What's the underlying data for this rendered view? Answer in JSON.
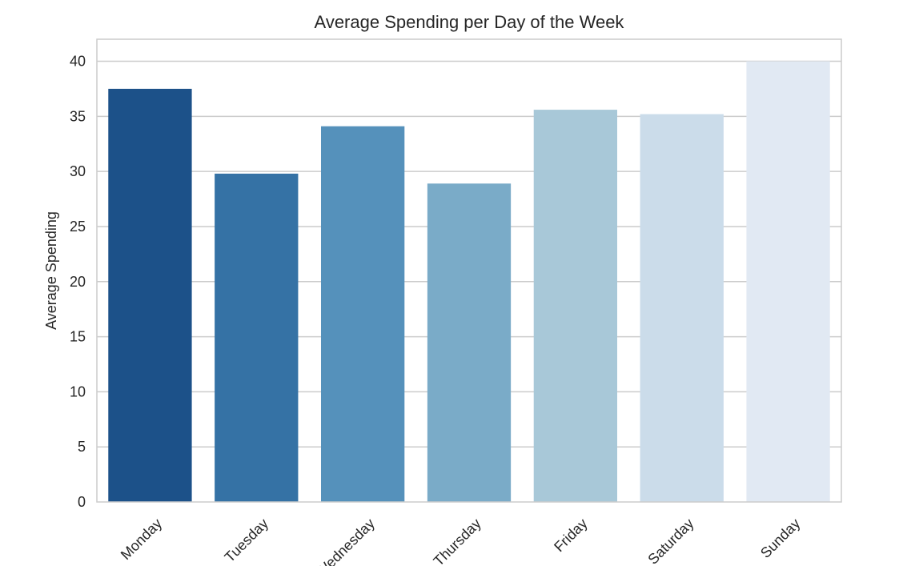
{
  "chart_data": {
    "type": "bar",
    "title": "Average Spending per Day of the Week",
    "xlabel": "",
    "ylabel": "Average Spending",
    "categories": [
      "Monday",
      "Tuesday",
      "Wednesday",
      "Thursday",
      "Friday",
      "Saturday",
      "Sunday"
    ],
    "values": [
      37.5,
      29.8,
      34.1,
      28.9,
      35.6,
      35.2,
      40.0
    ],
    "colors": [
      "#1c5189",
      "#3572a5",
      "#5591bb",
      "#7aabc8",
      "#a8c8d8",
      "#cbdcea",
      "#e1e9f3"
    ],
    "ylim": [
      0,
      42
    ],
    "yticks": [
      0,
      5,
      10,
      15,
      20,
      25,
      30,
      35,
      40
    ],
    "grid": true,
    "legend": "none"
  }
}
